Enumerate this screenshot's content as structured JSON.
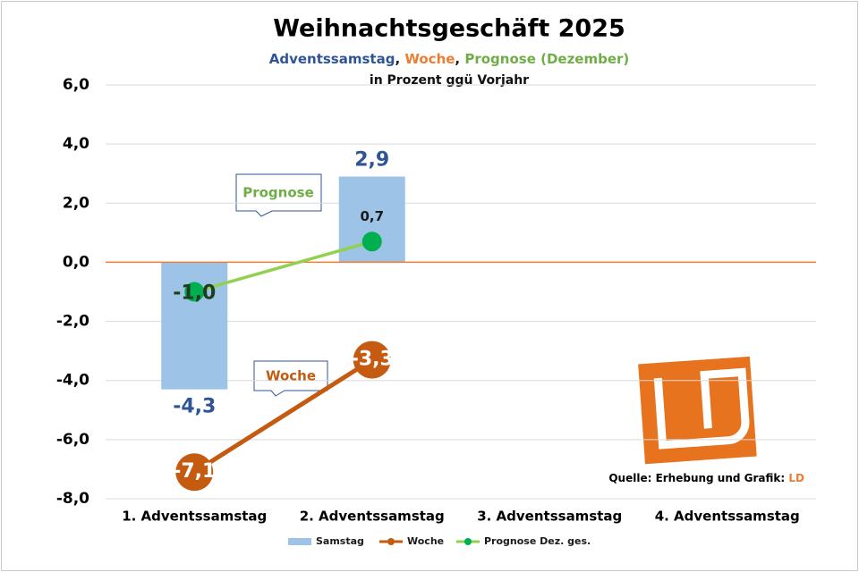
{
  "chart_data": {
    "type": "bar",
    "title": "Weihnachtsgeschäft 2025",
    "subtitle_parts": [
      {
        "text": "Adventssamstag",
        "color": "#2f5597"
      },
      {
        "text": ", ",
        "color": "#1a1a1a"
      },
      {
        "text": "Woche",
        "color": "#ed7d31"
      },
      {
        "text": ", ",
        "color": "#1a1a1a"
      },
      {
        "text": "Prognose (Dezember)",
        "color": "#70ad47"
      }
    ],
    "subtitle2": "in Prozent ggü Vorjahr",
    "categories": [
      "1. Adventssamstag",
      "2. Adventssamstag",
      "3. Adventssamstag",
      "4. Adventssamstag"
    ],
    "series": [
      {
        "name": "Samstag",
        "type": "bar",
        "color": "#9dc3e6",
        "label_color": "#2f5597",
        "values": [
          -4.3,
          2.9,
          null,
          null
        ],
        "value_labels": [
          "-4,3",
          "2,9",
          null,
          null
        ]
      },
      {
        "name": "Woche",
        "type": "line",
        "color": "#c55a11",
        "label_color": "#ffffff",
        "values": [
          -7.1,
          -3.3,
          null,
          null
        ],
        "value_labels": [
          "-7,1",
          "-3,3",
          null,
          null
        ]
      },
      {
        "name": "Prognose Dez. ges.",
        "type": "line",
        "color": "#92d050",
        "marker_color": "#00b050",
        "label_color": "#1f3d1f",
        "values": [
          -1.0,
          0.7,
          null,
          null
        ],
        "value_labels": [
          "-1,0",
          "0,7",
          null,
          null
        ]
      }
    ],
    "ylim": [
      -8,
      6
    ],
    "yticks": [
      {
        "value": -8,
        "label": "-8,0"
      },
      {
        "value": -6,
        "label": "-6,0"
      },
      {
        "value": -4,
        "label": "-4,0"
      },
      {
        "value": -2,
        "label": "-2,0"
      },
      {
        "value": 0,
        "label": "0,0"
      },
      {
        "value": 2,
        "label": "2,0"
      },
      {
        "value": 4,
        "label": "4,0"
      },
      {
        "value": 6,
        "label": "6,0"
      }
    ],
    "grid": true,
    "annotations": [
      {
        "text": "Prognose",
        "color": "#70ad47"
      },
      {
        "text": "Woche",
        "color": "#c55a11"
      }
    ],
    "source": "Quelle: Erhebung und Grafik: ",
    "source_brand": "LD"
  }
}
